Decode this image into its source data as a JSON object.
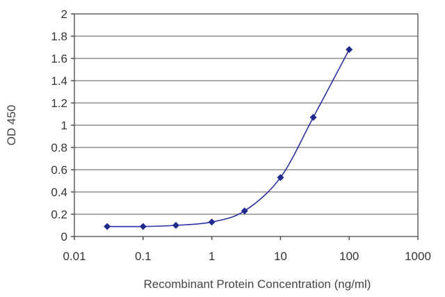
{
  "chart_data": {
    "type": "line",
    "title": "",
    "xlabel": "Recombinant Protein Concentration (ng/ml)",
    "ylabel": "OD 450",
    "x_scale": "log",
    "xlim": [
      0.01,
      1000
    ],
    "ylim": [
      0,
      2
    ],
    "x_ticks": [
      "0.01",
      "0.1",
      "1",
      "10",
      "100",
      "1000"
    ],
    "y_ticks": [
      "0",
      "0.2",
      "0.4",
      "0.6",
      "0.8",
      "1",
      "1.2",
      "1.4",
      "1.6",
      "1.8",
      "2"
    ],
    "grid": "horizontal",
    "legend": "none",
    "series": [
      {
        "color": "#2a2fa0",
        "marker": "diamond",
        "x": [
          0.03,
          0.1,
          0.3,
          1,
          3,
          10,
          30,
          100
        ],
        "y": [
          0.09,
          0.09,
          0.1,
          0.13,
          0.23,
          0.53,
          1.07,
          1.68
        ]
      }
    ]
  }
}
